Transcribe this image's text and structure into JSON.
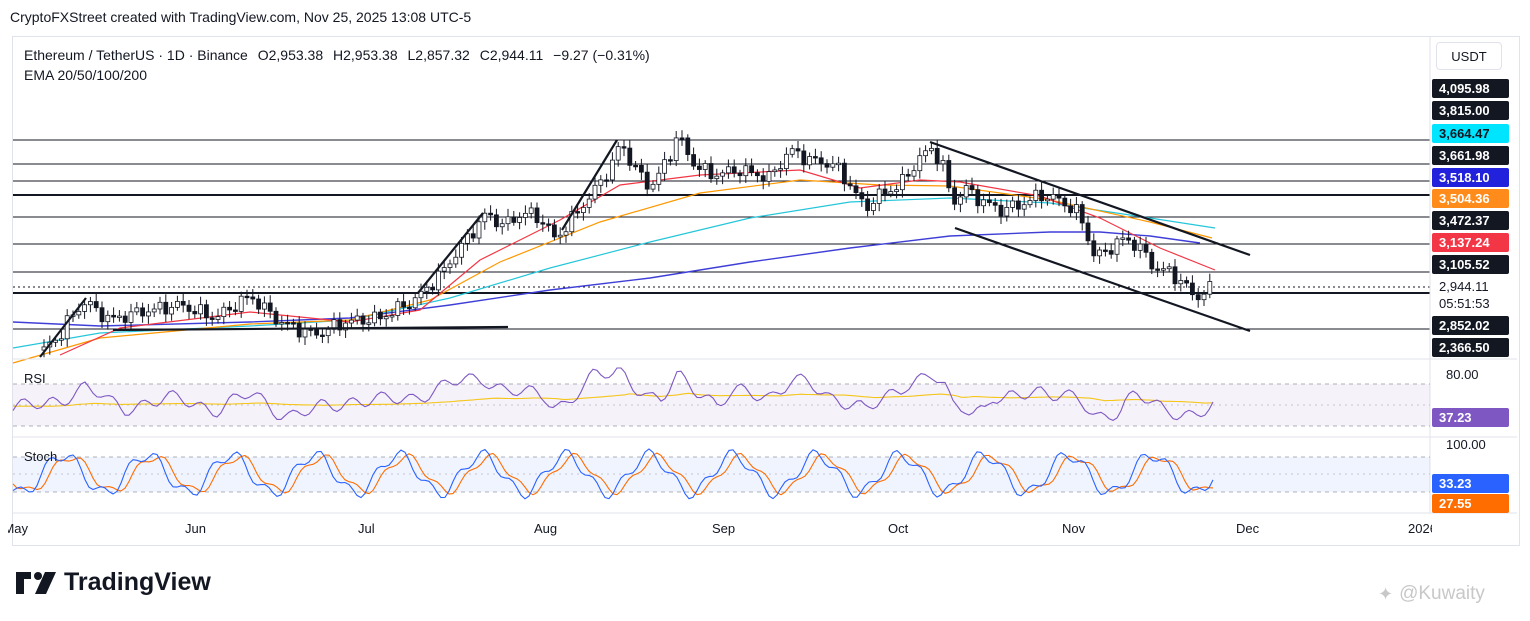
{
  "header": {
    "credit": "CryptoFXStreet created with TradingView.com, Nov 25, 2025 13:08 UTC-5"
  },
  "legend": {
    "symbol": "Ethereum / TetherUS · 1D · Binance",
    "open": "O2,953.38",
    "high": "H2,953.38",
    "low": "L2,857.32",
    "close": "C2,944.11",
    "change": "−9.27 (−0.31%)",
    "indicator": "EMA 20/50/100/200"
  },
  "axis": {
    "currency": "USDT"
  },
  "price_labels": [
    {
      "text": "4,095.98",
      "bg": "#131722",
      "fg": "#ffffff"
    },
    {
      "text": "3,815.00",
      "bg": "#131722",
      "fg": "#ffffff"
    },
    {
      "text": "3,664.47",
      "bg": "#00e5ff",
      "fg": "#131722"
    },
    {
      "text": "3,661.98",
      "bg": "#131722",
      "fg": "#ffffff"
    },
    {
      "text": "3,518.10",
      "bg": "#2222dd",
      "fg": "#ffffff"
    },
    {
      "text": "3,504.36",
      "bg": "#ff8c1a",
      "fg": "#ffffff"
    },
    {
      "text": "3,472.37",
      "bg": "#131722",
      "fg": "#ffffff"
    },
    {
      "text": "3,137.24",
      "bg": "#f23645",
      "fg": "#ffffff"
    },
    {
      "text": "3,105.52",
      "bg": "#131722",
      "fg": "#ffffff"
    },
    {
      "text": "2,944.11",
      "bg": "#ffffff",
      "fg": "#131722"
    },
    {
      "text": "05:51:53",
      "bg": "#ffffff",
      "fg": "#131722"
    },
    {
      "text": "2,852.02",
      "bg": "#131722",
      "fg": "#ffffff"
    },
    {
      "text": "2,366.50",
      "bg": "#131722",
      "fg": "#ffffff"
    }
  ],
  "rsi": {
    "title": "RSI",
    "level_label": "80.00",
    "value": "37.23"
  },
  "stoch": {
    "title": "Stoch",
    "level_label": "100.00",
    "k": "33.23",
    "d": "27.55"
  },
  "months": [
    "May",
    "Jun",
    "Jul",
    "Aug",
    "Sep",
    "Oct",
    "Nov",
    "Dec",
    "2026"
  ],
  "brand": {
    "name": "TradingView"
  },
  "watermark": "@Kuwaity",
  "colors": {
    "up": "#131722",
    "down": "#131722",
    "ema20": "#f23645",
    "ema50": "#ff9800",
    "ema100": "#26c6da",
    "ema200": "#3f3fd8",
    "rsi": "#7e57c2",
    "rsi_ma": "#f5c518",
    "stoch_k": "#2962ff",
    "stoch_d": "#ff6d00"
  },
  "chart_data": {
    "type": "candlestick",
    "symbol": "ETHUSDT",
    "interval": "1D",
    "x_range": [
      "2025-05-01",
      "2026-01-01"
    ],
    "y_range": [
      2300,
      4200
    ],
    "candles_weekly_summary": [
      {
        "date": "2025-05-05",
        "close": 2500
      },
      {
        "date": "2025-05-12",
        "close": 2600
      },
      {
        "date": "2025-05-19",
        "close": 2550
      },
      {
        "date": "2025-05-26",
        "close": 2620
      },
      {
        "date": "2025-06-02",
        "close": 2520
      },
      {
        "date": "2025-06-09",
        "close": 2600
      },
      {
        "date": "2025-06-16",
        "close": 2480
      },
      {
        "date": "2025-06-23",
        "close": 2420
      },
      {
        "date": "2025-06-30",
        "close": 2440
      },
      {
        "date": "2025-07-07",
        "close": 2700
      },
      {
        "date": "2025-07-14",
        "close": 3300
      },
      {
        "date": "2025-07-21",
        "close": 3700
      },
      {
        "date": "2025-07-28",
        "close": 3650
      },
      {
        "date": "2025-08-04",
        "close": 3900
      },
      {
        "date": "2025-08-11",
        "close": 4650
      },
      {
        "date": "2025-08-18",
        "close": 4450
      },
      {
        "date": "2025-08-25",
        "close": 4500
      },
      {
        "date": "2025-09-01",
        "close": 4350
      },
      {
        "date": "2025-09-08",
        "close": 4620
      },
      {
        "date": "2025-09-15",
        "close": 4500
      },
      {
        "date": "2025-09-22",
        "close": 3950
      },
      {
        "date": "2025-09-29",
        "close": 4500
      },
      {
        "date": "2025-10-06",
        "close": 4400
      },
      {
        "date": "2025-10-13",
        "close": 3850
      },
      {
        "date": "2025-10-20",
        "close": 3900
      },
      {
        "date": "2025-10-27",
        "close": 3800
      },
      {
        "date": "2025-11-03",
        "close": 3400
      },
      {
        "date": "2025-11-10",
        "close": 3200
      },
      {
        "date": "2025-11-17",
        "close": 2800
      },
      {
        "date": "2025-11-25",
        "close": 2944.11
      }
    ],
    "horizontal_levels": [
      4095.98,
      3815.0,
      3661.98,
      3472.37,
      3105.52,
      2852.02,
      2366.5
    ],
    "ema": {
      "ema20": 3137.24,
      "ema50": 3504.36,
      "ema100": 3664.47,
      "ema200": 3518.1
    },
    "rsi": {
      "value": 37.23,
      "upper": 80,
      "lower": 20
    },
    "stoch": {
      "k": 33.23,
      "d": 27.55,
      "upper": 80,
      "lower": 20
    }
  }
}
